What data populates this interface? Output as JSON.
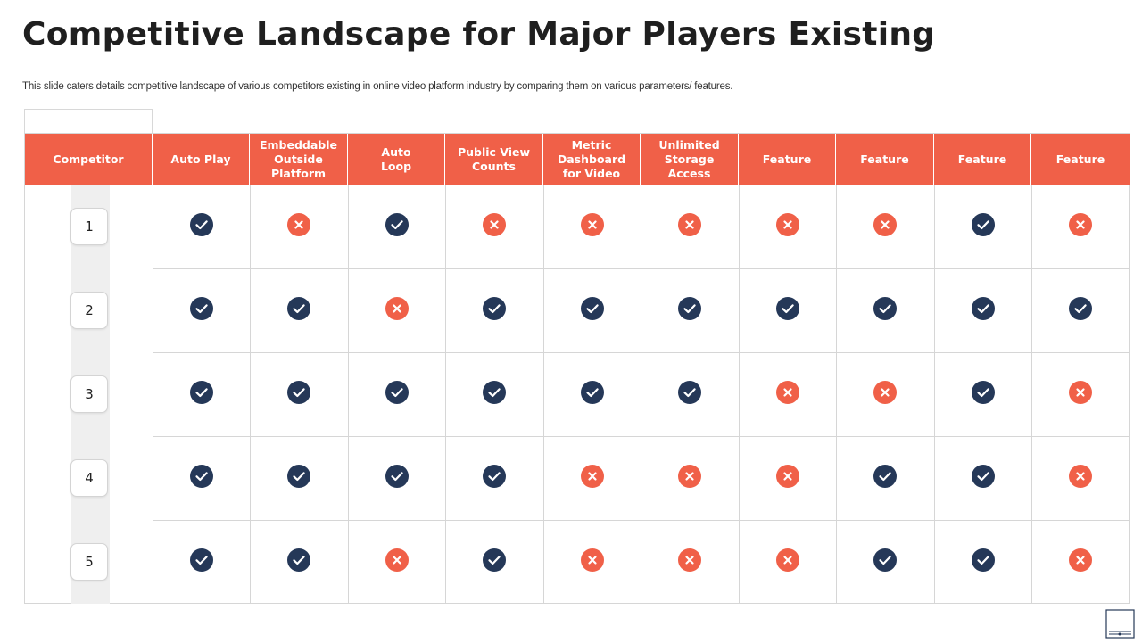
{
  "slide": {
    "title": "Competitive Landscape for Major Players Existing",
    "subtitle": "This slide caters details competitive landscape of various competitors existing in online video platform industry by comparing them on various parameters/ features."
  },
  "table": {
    "headers": [
      "Competitor",
      "Auto Play",
      "Embeddable\nOutside\nPlatform",
      "Auto\nLoop",
      "Public View\nCounts",
      "Metric\nDashboard\nfor Video",
      "Unlimited\nStorage\nAccess",
      "Feature",
      "Feature",
      "Feature",
      "Feature"
    ],
    "rows": [
      {
        "competitor": "1",
        "marks": [
          "check",
          "cross",
          "check",
          "cross",
          "cross",
          "cross",
          "cross",
          "cross",
          "check",
          "cross"
        ]
      },
      {
        "competitor": "2",
        "marks": [
          "check",
          "check",
          "cross",
          "check",
          "check",
          "check",
          "check",
          "check",
          "check",
          "check"
        ]
      },
      {
        "competitor": "3",
        "marks": [
          "check",
          "check",
          "check",
          "check",
          "check",
          "check",
          "cross",
          "cross",
          "check",
          "cross"
        ]
      },
      {
        "competitor": "4",
        "marks": [
          "check",
          "check",
          "check",
          "check",
          "cross",
          "cross",
          "cross",
          "check",
          "check",
          "cross"
        ]
      },
      {
        "competitor": "5",
        "marks": [
          "check",
          "check",
          "cross",
          "check",
          "cross",
          "cross",
          "cross",
          "check",
          "check",
          "cross"
        ]
      }
    ]
  },
  "icons": {
    "check": "check-circle-icon",
    "cross": "cross-circle-icon",
    "corner": "slide-thumbnail-icon"
  },
  "colors": {
    "header_bg": "#f06048",
    "check_bg": "#253858",
    "cross_bg": "#f06048"
  }
}
